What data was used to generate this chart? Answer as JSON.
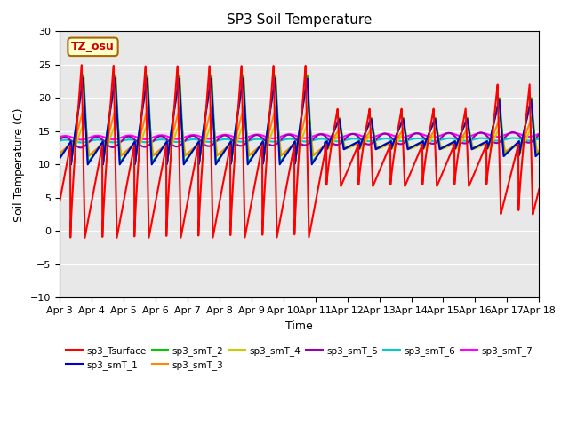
{
  "title": "SP3 Soil Temperature",
  "ylabel": "Soil Temperature (C)",
  "xlabel": "Time",
  "ylim": [
    -10,
    30
  ],
  "xlim": [
    0,
    15
  ],
  "xtick_labels": [
    "Apr 3",
    "Apr 4",
    "Apr 5",
    "Apr 6",
    "Apr 7",
    "Apr 8",
    "Apr 9",
    "Apr 10",
    "Apr 11",
    "Apr 12",
    "Apr 13",
    "Apr 14",
    "Apr 15",
    "Apr 16",
    "Apr 17",
    "Apr 18"
  ],
  "annotation_text": "TZ_osu",
  "annotation_color": "#cc0000",
  "annotation_bg": "#ffffcc",
  "annotation_border": "#aa6600",
  "background_color": "#e8e8e8",
  "legend_entries": [
    "sp3_Tsurface",
    "sp3_smT_1",
    "sp3_smT_2",
    "sp3_smT_3",
    "sp3_smT_4",
    "sp3_smT_5",
    "sp3_smT_6",
    "sp3_smT_7"
  ],
  "line_colors": [
    "#ff0000",
    "#0000cc",
    "#00cc00",
    "#ff8800",
    "#cccc00",
    "#9900aa",
    "#00cccc",
    "#ff00ff"
  ],
  "line_widths": [
    1.5,
    1.5,
    1.5,
    1.5,
    1.5,
    1.5,
    1.5,
    1.5
  ]
}
